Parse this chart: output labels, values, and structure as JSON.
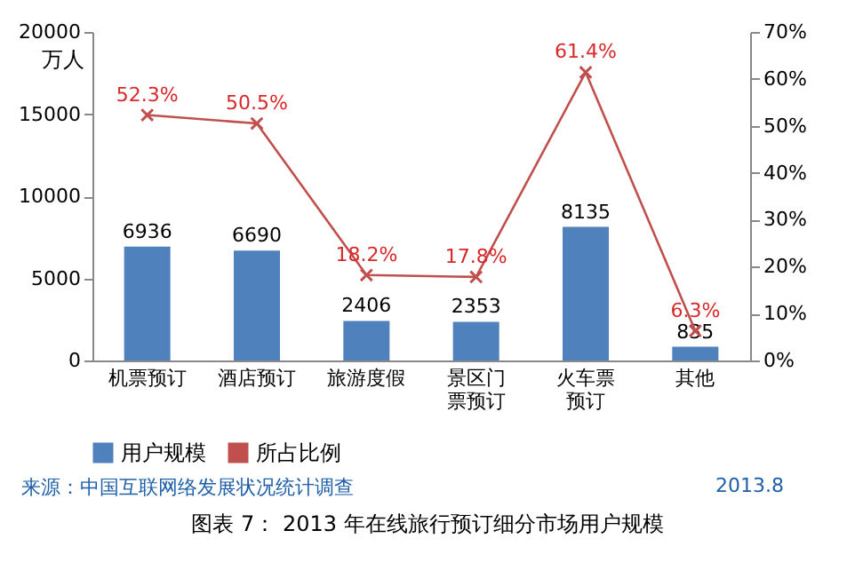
{
  "chart_data": {
    "type": "bar",
    "categories": [
      "机票预订",
      "酒店预订",
      "旅游度假",
      "景区门票预订",
      "火车票预订",
      "其他"
    ],
    "ylabel": "万人",
    "ylim": [
      0,
      20000
    ],
    "yticks": [
      0,
      5000,
      10000,
      15000,
      20000
    ],
    "y2lim": [
      0,
      70
    ],
    "y2ticks": [
      {
        "value": 0,
        "label": "0%"
      },
      {
        "value": 10,
        "label": "10%"
      },
      {
        "value": 20,
        "label": "20%"
      },
      {
        "value": 30,
        "label": "30%"
      },
      {
        "value": 40,
        "label": "40%"
      },
      {
        "value": 50,
        "label": "50%"
      },
      {
        "value": 60,
        "label": "60%"
      },
      {
        "value": 70,
        "label": "70%"
      }
    ],
    "series": [
      {
        "name": "用户规模",
        "color": "#4f81bd",
        "values": [
          6936,
          6690,
          2406,
          2353,
          8135,
          835
        ],
        "data_labels": true
      },
      {
        "name": "所占比例",
        "type": "line",
        "axis": "y2",
        "color": "#c0504d",
        "marker": "cross",
        "values": [
          52.3,
          50.5,
          18.2,
          17.8,
          61.4,
          6.3
        ],
        "value_labels": [
          "52.3%",
          "50.5%",
          "18.2%",
          "17.8%",
          "61.4%",
          "6.3%"
        ]
      }
    ],
    "legend": "bottom",
    "grid": false,
    "annotations": [
      "来源：中国互联网络发展状况统计调查",
      "2013.8",
      "图表 7：  2013 年在线旅行预订细分市场用户规模"
    ]
  }
}
